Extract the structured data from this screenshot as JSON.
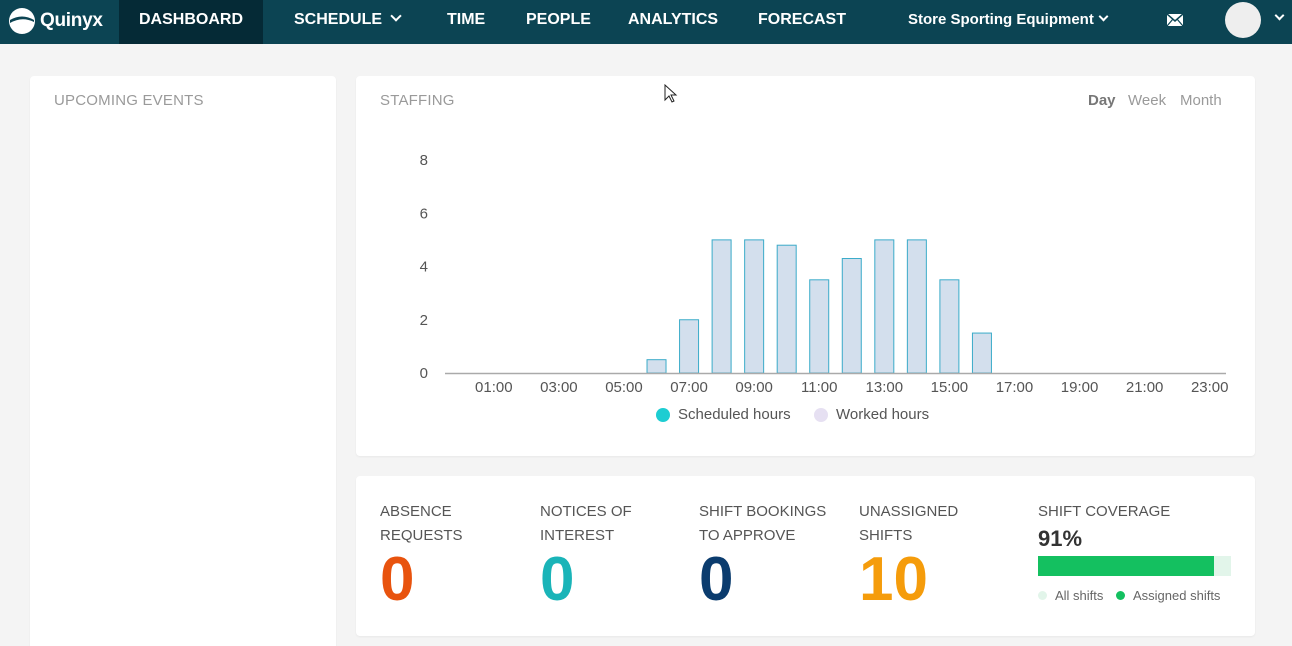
{
  "nav": {
    "logo_text": "Quinyx",
    "items": [
      "DASHBOARD",
      "SCHEDULE",
      "TIME",
      "PEOPLE",
      "ANALYTICS",
      "FORECAST"
    ],
    "active": "DASHBOARD",
    "store": "Store Sporting Equipment"
  },
  "events": {
    "title": "UPCOMING EVENTS"
  },
  "staffing": {
    "title": "STAFFING",
    "ranges": [
      "Day",
      "Week",
      "Month"
    ],
    "active_range": "Day",
    "legend": [
      {
        "label": "Scheduled hours",
        "color": "#1dcdd2"
      },
      {
        "label": "Worked hours",
        "color": "#e6e0f2"
      }
    ]
  },
  "chart_data": {
    "type": "bar",
    "title": "",
    "xlabel": "",
    "ylabel": "",
    "ylim": [
      0,
      8
    ],
    "y_ticks": [
      0,
      2,
      4,
      6,
      8
    ],
    "x_tick_labels": [
      "01:00",
      "03:00",
      "05:00",
      "07:00",
      "09:00",
      "11:00",
      "13:00",
      "15:00",
      "17:00",
      "19:00",
      "21:00",
      "23:00"
    ],
    "categories": [
      "00:00",
      "01:00",
      "02:00",
      "03:00",
      "04:00",
      "05:00",
      "06:00",
      "07:00",
      "08:00",
      "09:00",
      "10:00",
      "11:00",
      "12:00",
      "13:00",
      "14:00",
      "15:00",
      "16:00",
      "17:00",
      "18:00",
      "19:00",
      "20:00",
      "21:00",
      "22:00",
      "23:00"
    ],
    "series": [
      {
        "name": "Scheduled hours",
        "values": [
          0,
          0,
          0,
          0,
          0,
          0,
          0.5,
          2,
          5,
          5,
          4.8,
          3.5,
          4.3,
          5,
          5,
          3.5,
          1.5,
          0,
          0,
          0,
          0,
          0,
          0,
          0
        ]
      }
    ],
    "bar_fill": "#d3dfed",
    "bar_stroke": "#3aabc9",
    "grid": false,
    "legend_position": "bottom"
  },
  "stats": [
    {
      "label_line1": "ABSENCE",
      "label_line2": "REQUESTS",
      "value": "0",
      "color": "#e8530e"
    },
    {
      "label_line1": "NOTICES OF",
      "label_line2": "INTEREST",
      "value": "0",
      "color": "#1ab4b8"
    },
    {
      "label_line1": "SHIFT BOOKINGS",
      "label_line2": "TO APPROVE",
      "value": "0",
      "color": "#0b3c6e"
    },
    {
      "label_line1": "UNASSIGNED",
      "label_line2": "SHIFTS",
      "value": "10",
      "color": "#f59c0b"
    }
  ],
  "coverage": {
    "title": "SHIFT COVERAGE",
    "percent_text": "91%",
    "percent": 91,
    "legend_all": "All shifts",
    "legend_assigned": "Assigned shifts",
    "color_all": "#e2f5ea",
    "color_assigned": "#14c060"
  }
}
